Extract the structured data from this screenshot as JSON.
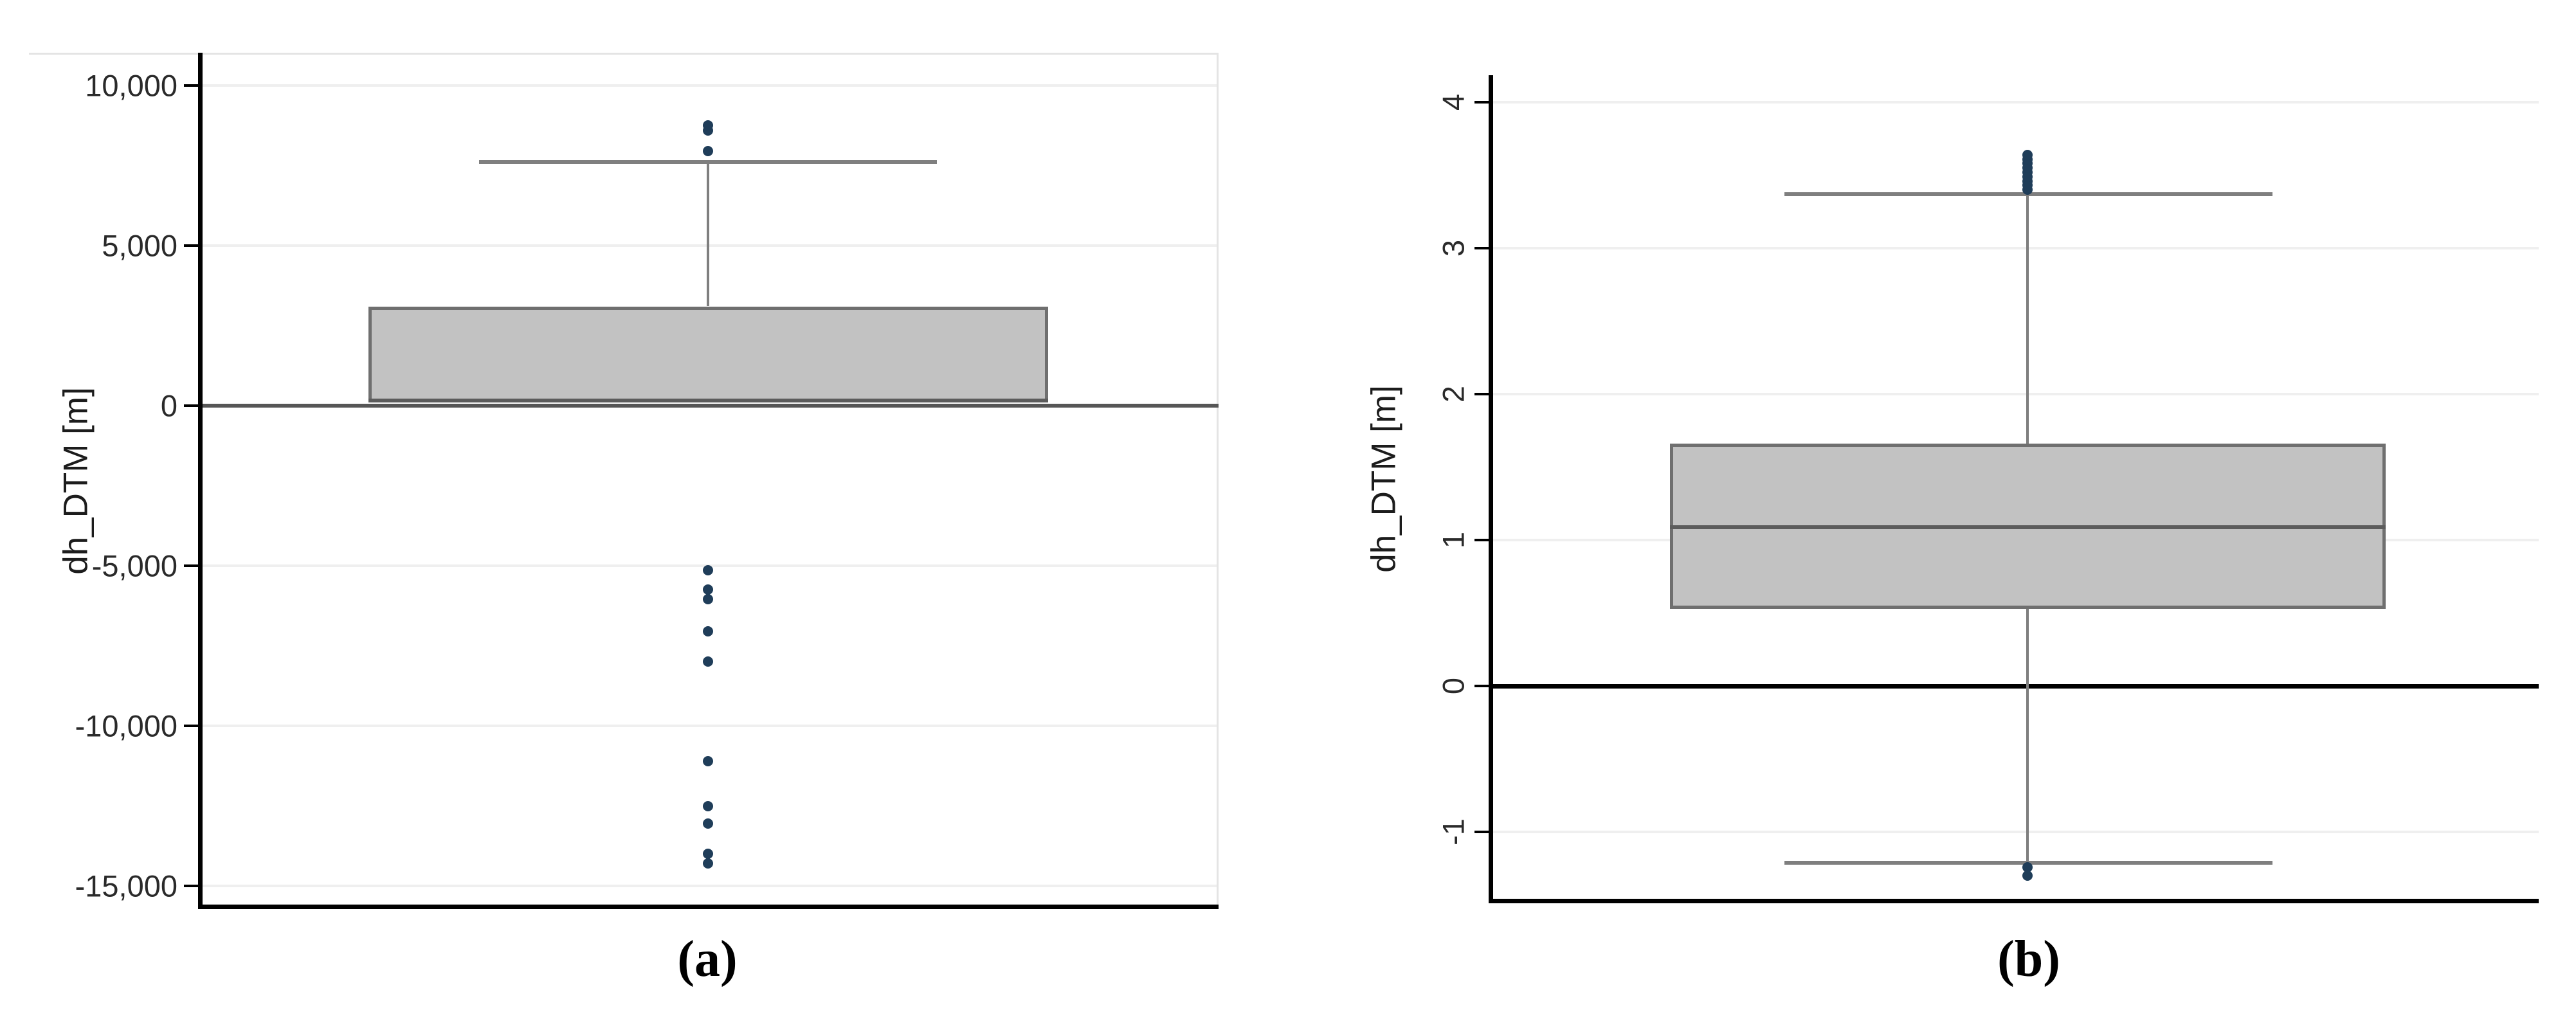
{
  "figure_title": "",
  "style": {
    "background": "#ffffff",
    "box_fill": "#c2c2c2",
    "box_border": "#6f6f6f",
    "whisker_color": "#7f7f7f",
    "outlier_color": "#1f3d59",
    "grid_color": "#efefef",
    "axis_color": "#000000",
    "tick_text_color": "#2a2a2a",
    "border_color": "#e4e4e4"
  },
  "chart_data": [
    {
      "id": "a",
      "type": "boxplot",
      "caption": "(a)",
      "ylabel": "dh_DTM [m]",
      "ylim": [
        -15580,
        11020
      ],
      "yticks": [
        {
          "v": 10000,
          "label": "10,000"
        },
        {
          "v": 5000,
          "label": "5,000"
        },
        {
          "v": 0,
          "label": "0"
        },
        {
          "v": -5000,
          "label": "-5,000"
        },
        {
          "v": -10000,
          "label": "-10,000"
        },
        {
          "v": -15000,
          "label": "-15,000"
        }
      ],
      "tick_labels_rotated": false,
      "grid": true,
      "zero_line": {
        "show": true,
        "color": "#565656",
        "width": 6
      },
      "box": {
        "q1": 100,
        "median": 160,
        "q3": 3100,
        "whisker_upper": 7600,
        "whisker_lower": null
      },
      "outliers_upper": [
        7950,
        8600,
        8750
      ],
      "outliers_lower": [
        -5150,
        -5750,
        -6050,
        -7050,
        -8000,
        -11100,
        -12500,
        -13050,
        -14000,
        -14300
      ],
      "borders": {
        "top": true,
        "right": true
      }
    },
    {
      "id": "b",
      "type": "boxplot",
      "caption": "(b)",
      "ylabel": "dh_DTM [m]",
      "ylim": [
        -1.458,
        4.185
      ],
      "yticks": [
        {
          "v": 4,
          "label": "4"
        },
        {
          "v": 3,
          "label": "3"
        },
        {
          "v": 2,
          "label": "2"
        },
        {
          "v": 1,
          "label": "1"
        },
        {
          "v": 0,
          "label": "0"
        },
        {
          "v": -1,
          "label": "-1"
        }
      ],
      "tick_labels_rotated": true,
      "grid": true,
      "zero_line": {
        "show": true,
        "color": "#000000",
        "width": 7
      },
      "box": {
        "q1": 0.53,
        "median": 1.09,
        "q3": 1.66,
        "whisker_upper": 3.37,
        "whisker_lower": -1.21
      },
      "outliers_upper": [
        3.4,
        3.43,
        3.46,
        3.49,
        3.52,
        3.55,
        3.58,
        3.61,
        3.64
      ],
      "outliers_lower": [
        -1.24,
        -1.3
      ],
      "borders": {
        "top": false,
        "right": false
      }
    }
  ]
}
